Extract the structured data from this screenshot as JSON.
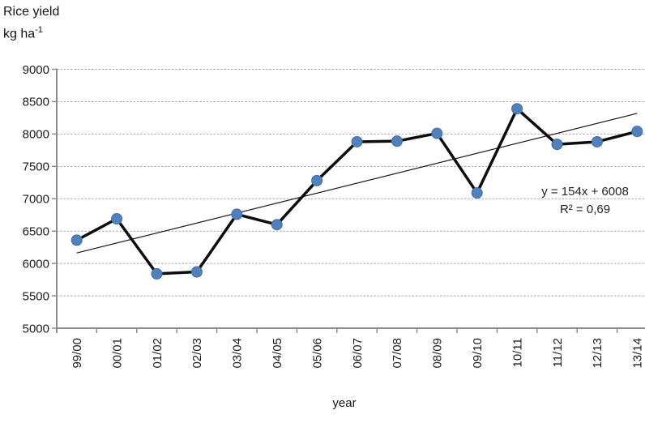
{
  "chart_data": {
    "type": "line",
    "title": "Rice yield",
    "unit": {
      "prefix": "kg ha",
      "superscript": "-1"
    },
    "xlabel": "year",
    "categories": [
      "99/00",
      "00/01",
      "01/02",
      "02/03",
      "03/04",
      "04/05",
      "05/06",
      "06/07",
      "07/08",
      "08/09",
      "09/10",
      "10/11",
      "11/12",
      "12/13",
      "13/14"
    ],
    "series": [
      {
        "name": "Rice yield",
        "values": [
          6360,
          6690,
          5840,
          5870,
          6760,
          6600,
          7280,
          7880,
          7890,
          8010,
          7090,
          8390,
          7840,
          7880,
          8040
        ]
      }
    ],
    "ylim": [
      5000,
      9000
    ],
    "ytick_step": 500,
    "grid": true,
    "legend": "none",
    "trendline": {
      "slope": 154,
      "intercept": 6008,
      "r_squared": 0.69,
      "equation": "y = 154x + 6008",
      "r2_label": "R² = 0,69"
    },
    "colors": {
      "marker": "#4F81BD",
      "marker_border": "#3D6EA5",
      "line": "#0d0d0d",
      "trendline": "#1a1a1a",
      "axis": "#8C8C8C",
      "gridline": "#A3A3A3",
      "text": "#1a1a1a"
    }
  }
}
